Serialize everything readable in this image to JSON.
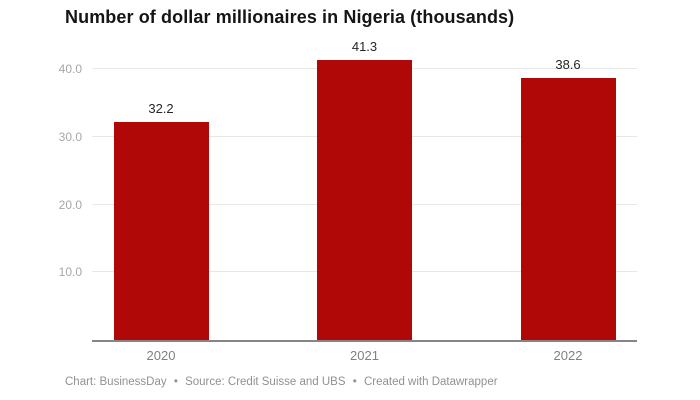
{
  "title": "Number of dollar millionaires in Nigeria (thousands)",
  "footer": {
    "chart_credit": "Chart: BusinessDay",
    "separator": "•",
    "source_credit": "Source: Credit Suisse and UBS",
    "tool_credit": "Created with Datawrapper"
  },
  "colors": {
    "bar": "#b00707",
    "gridline": "#e7e7e7",
    "baseline": "#858585",
    "title_text": "#151515",
    "value_label_text": "#262626",
    "axis_tick_text": "#a6a6a6",
    "x_label_text": "#808080",
    "footer_text": "#919191",
    "background": "#ffffff"
  },
  "chart_data": {
    "type": "bar",
    "title": "Number of dollar millionaires in Nigeria (thousands)",
    "xlabel": "",
    "ylabel": "",
    "categories": [
      "2020",
      "2021",
      "2022"
    ],
    "values": [
      32.2,
      41.3,
      38.6
    ],
    "value_labels": [
      "32.2",
      "41.3",
      "38.6"
    ],
    "y_ticks": [
      {
        "value": 10,
        "label": "10.0"
      },
      {
        "value": 20,
        "label": "20.0"
      },
      {
        "value": 30,
        "label": "30.0"
      },
      {
        "value": 40,
        "label": "40.0"
      }
    ],
    "ylim": [
      0,
      42.8
    ],
    "grid": true,
    "legend": "none",
    "bar_color": "#b00707"
  }
}
